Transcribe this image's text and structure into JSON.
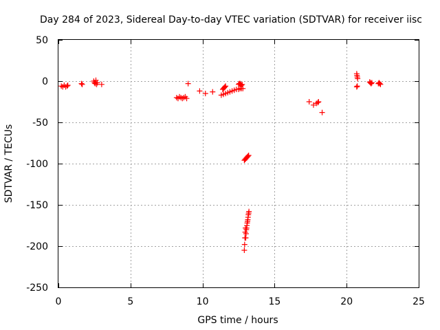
{
  "chart_data": {
    "type": "scatter",
    "title": "Day 284 of 2023, Sidereal Day-to-day VTEC variation (SDTVAR) for receiver iisc",
    "xlabel": "GPS time / hours",
    "ylabel": "SDTVAR / TECUs",
    "xlim": [
      0,
      25
    ],
    "ylim": [
      -250,
      50
    ],
    "xticks": [
      0,
      5,
      10,
      15,
      20,
      25
    ],
    "yticks": [
      -250,
      -200,
      -150,
      -100,
      -50,
      0,
      50
    ],
    "grid": true,
    "marker": "+",
    "colors": {
      "series": "#ff0000",
      "grid": "#a0a0a0",
      "axis": "#000000"
    },
    "series": [
      {
        "name": "SDTVAR",
        "points": [
          [
            0.2,
            -6
          ],
          [
            0.3,
            -7
          ],
          [
            0.4,
            -5
          ],
          [
            0.5,
            -7
          ],
          [
            0.6,
            -6
          ],
          [
            0.65,
            -5
          ],
          [
            1.6,
            -3
          ],
          [
            1.65,
            -4
          ],
          [
            2.45,
            0
          ],
          [
            2.5,
            -2
          ],
          [
            2.55,
            -3
          ],
          [
            2.6,
            1
          ],
          [
            2.65,
            -4
          ],
          [
            2.7,
            -2
          ],
          [
            3.0,
            -4
          ],
          [
            8.2,
            -20
          ],
          [
            8.3,
            -21
          ],
          [
            8.4,
            -19
          ],
          [
            8.5,
            -20
          ],
          [
            8.6,
            -21
          ],
          [
            8.7,
            -20
          ],
          [
            8.8,
            -19
          ],
          [
            8.9,
            -21
          ],
          [
            9.0,
            -3
          ],
          [
            9.8,
            -12
          ],
          [
            10.2,
            -15
          ],
          [
            10.7,
            -13
          ],
          [
            11.3,
            -17
          ],
          [
            11.45,
            -16
          ],
          [
            11.6,
            -15
          ],
          [
            11.75,
            -14
          ],
          [
            11.9,
            -13
          ],
          [
            12.05,
            -12
          ],
          [
            12.2,
            -11
          ],
          [
            12.35,
            -10
          ],
          [
            12.5,
            -10
          ],
          [
            12.6,
            -9
          ],
          [
            12.7,
            -9
          ],
          [
            12.8,
            -9
          ],
          [
            11.4,
            -10
          ],
          [
            11.45,
            -9
          ],
          [
            11.5,
            -8
          ],
          [
            11.55,
            -7
          ],
          [
            11.6,
            -6
          ],
          [
            12.5,
            -4
          ],
          [
            12.55,
            -3
          ],
          [
            12.6,
            -3
          ],
          [
            12.65,
            -4
          ],
          [
            12.7,
            -5
          ],
          [
            12.75,
            -4
          ],
          [
            12.9,
            -96
          ],
          [
            12.95,
            -95
          ],
          [
            13.0,
            -94
          ],
          [
            13.05,
            -93
          ],
          [
            13.1,
            -92
          ],
          [
            13.15,
            -91
          ],
          [
            13.2,
            -90
          ],
          [
            12.9,
            -205
          ],
          [
            12.92,
            -198
          ],
          [
            12.94,
            -190
          ],
          [
            12.96,
            -183
          ],
          [
            12.98,
            -178
          ],
          [
            13.0,
            -190
          ],
          [
            13.02,
            -185
          ],
          [
            13.04,
            -180
          ],
          [
            13.06,
            -178
          ],
          [
            13.08,
            -175
          ],
          [
            13.1,
            -172
          ],
          [
            13.12,
            -170
          ],
          [
            13.14,
            -168
          ],
          [
            13.16,
            -165
          ],
          [
            13.18,
            -162
          ],
          [
            13.2,
            -160
          ],
          [
            13.22,
            -158
          ],
          [
            17.4,
            -25
          ],
          [
            17.7,
            -29
          ],
          [
            17.9,
            -27
          ],
          [
            18.0,
            -26
          ],
          [
            18.05,
            -25
          ],
          [
            18.3,
            -38
          ],
          [
            20.7,
            9
          ],
          [
            20.72,
            7
          ],
          [
            20.74,
            5
          ],
          [
            20.76,
            3
          ],
          [
            20.7,
            -7
          ],
          [
            20.74,
            -6
          ],
          [
            21.6,
            -1
          ],
          [
            21.65,
            -2
          ],
          [
            21.7,
            -3
          ],
          [
            21.75,
            -2
          ],
          [
            22.2,
            -3
          ],
          [
            22.25,
            -2
          ],
          [
            22.3,
            -3
          ],
          [
            22.35,
            -4
          ]
        ]
      }
    ]
  }
}
